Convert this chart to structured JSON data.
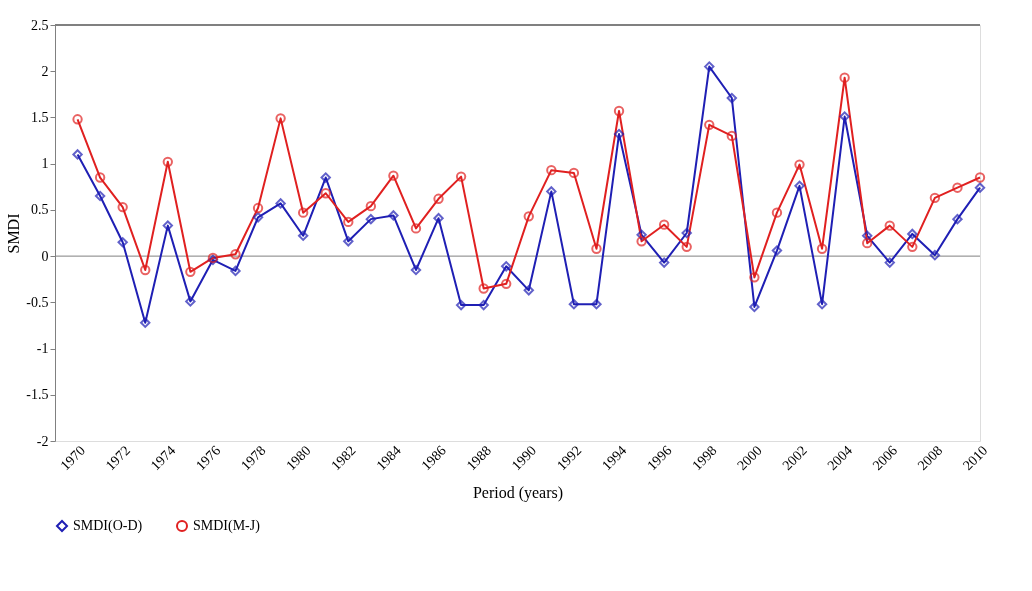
{
  "chart_data": {
    "type": "line",
    "xlabel": "Period (years)",
    "ylabel": "SMDI",
    "x": [
      1970,
      1971,
      1972,
      1973,
      1974,
      1975,
      1976,
      1977,
      1978,
      1979,
      1980,
      1981,
      1982,
      1983,
      1984,
      1985,
      1986,
      1987,
      1988,
      1989,
      1990,
      1991,
      1992,
      1993,
      1994,
      1995,
      1996,
      1997,
      1998,
      1999,
      2000,
      2001,
      2002,
      2003,
      2004,
      2005,
      2006,
      2007,
      2008,
      2009,
      2010
    ],
    "series": [
      {
        "name": "SMDI(O-D)",
        "color": "#1f1fb4",
        "marker": "diamond",
        "values": [
          1.1,
          0.65,
          0.15,
          -0.72,
          0.33,
          -0.49,
          -0.04,
          -0.16,
          0.42,
          0.57,
          0.22,
          0.85,
          0.16,
          0.4,
          0.44,
          -0.15,
          0.41,
          -0.53,
          -0.53,
          -0.11,
          -0.37,
          0.7,
          -0.52,
          -0.52,
          1.32,
          0.23,
          -0.07,
          0.25,
          2.05,
          1.71,
          -0.55,
          0.06,
          0.76,
          -0.52,
          1.51,
          0.22,
          -0.07,
          0.24,
          0.01,
          0.4,
          0.74
        ]
      },
      {
        "name": "SMDI(M-J)",
        "color": "#e02020",
        "marker": "circle",
        "values": [
          1.48,
          0.85,
          0.53,
          -0.15,
          1.02,
          -0.17,
          -0.02,
          0.02,
          0.52,
          1.49,
          0.47,
          0.68,
          0.37,
          0.54,
          0.87,
          0.3,
          0.62,
          0.86,
          -0.35,
          -0.3,
          0.43,
          0.93,
          0.9,
          0.08,
          1.57,
          0.16,
          0.34,
          0.1,
          1.42,
          1.3,
          -0.23,
          0.47,
          0.99,
          0.08,
          1.93,
          0.14,
          0.33,
          0.1,
          0.63,
          0.74,
          0.85
        ]
      }
    ],
    "xlim": [
      1969,
      2010
    ],
    "xticks": [
      1970,
      1972,
      1974,
      1976,
      1978,
      1980,
      1982,
      1984,
      1986,
      1988,
      1990,
      1992,
      1994,
      1996,
      1998,
      2000,
      2002,
      2004,
      2006,
      2008,
      2010
    ],
    "ylim": [
      -2,
      2.5
    ],
    "yticks": [
      -2,
      -1.5,
      -1,
      -0.5,
      0,
      0.5,
      1,
      1.5,
      2,
      2.5
    ],
    "ref_lines": [
      {
        "axis": "y",
        "value": 0,
        "color": "#808080"
      }
    ],
    "grid": false,
    "legend": "bottom",
    "line_style": "solid"
  }
}
